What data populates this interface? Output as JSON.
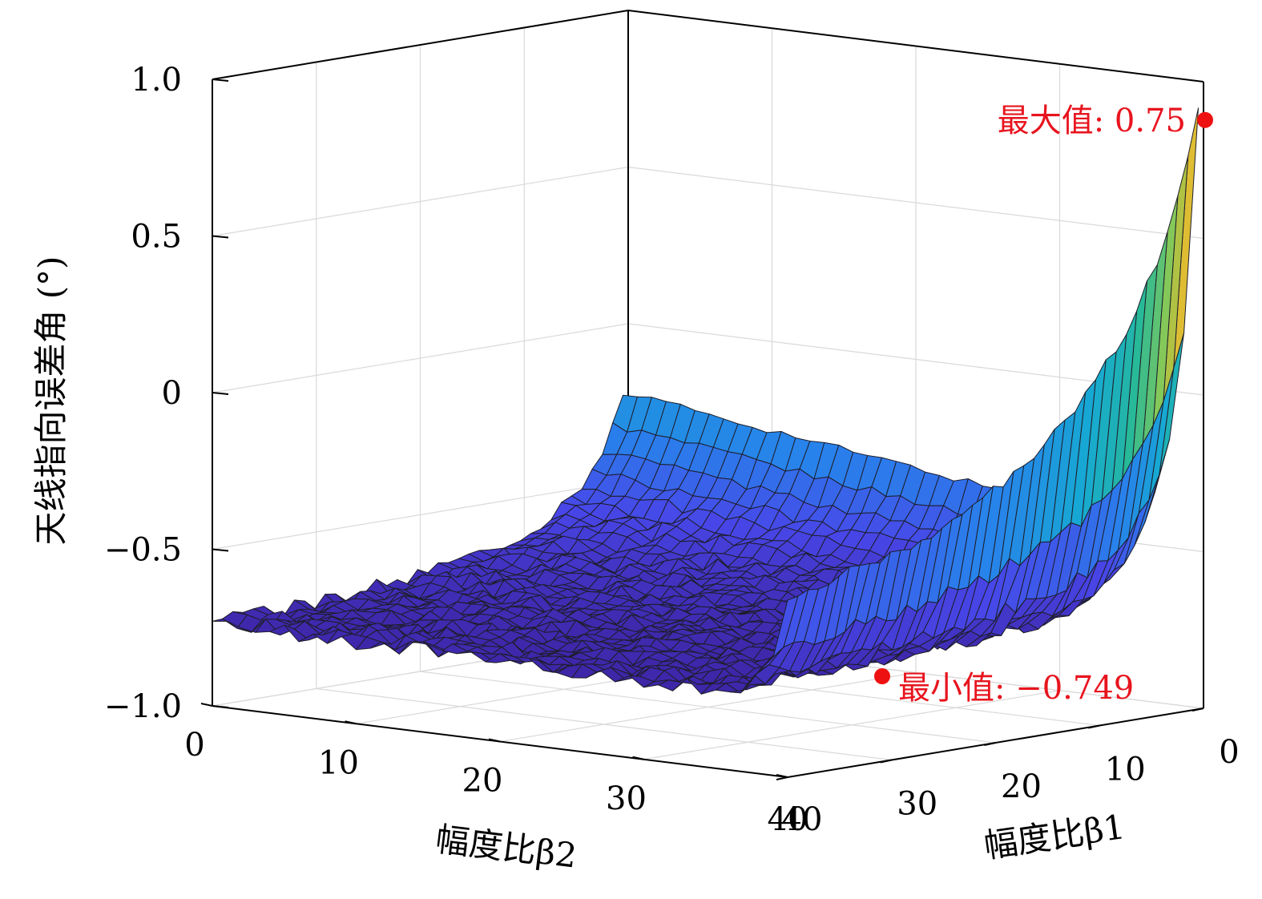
{
  "chart_data": {
    "type": "surface3d",
    "zlabel": "天线指向误差角 (°)",
    "xlabel": "幅度比β2",
    "ylabel": "幅度比β1",
    "x_ticks": [
      "0",
      "10",
      "20",
      "30",
      "40"
    ],
    "y_ticks": [
      "0",
      "10",
      "20",
      "30",
      "40"
    ],
    "z_ticks": [
      "−1.0",
      "−0.5",
      "0",
      "0.5",
      "1.0"
    ],
    "xlim": [
      0,
      40
    ],
    "ylim": [
      0,
      40
    ],
    "zlim": [
      -1.0,
      1.0
    ],
    "grid": true,
    "colormap": "parula",
    "max_point": {
      "beta1": 0,
      "beta2": 40,
      "value": 0.75,
      "label": "最大值: 0.75"
    },
    "min_point": {
      "beta1": 40,
      "beta2": 40,
      "value": -0.749,
      "label": "最小值: −0.749"
    }
  },
  "colors": {
    "marker": "#ee1111",
    "annotation": "#e8141e",
    "edge": "#1e1e2a"
  }
}
